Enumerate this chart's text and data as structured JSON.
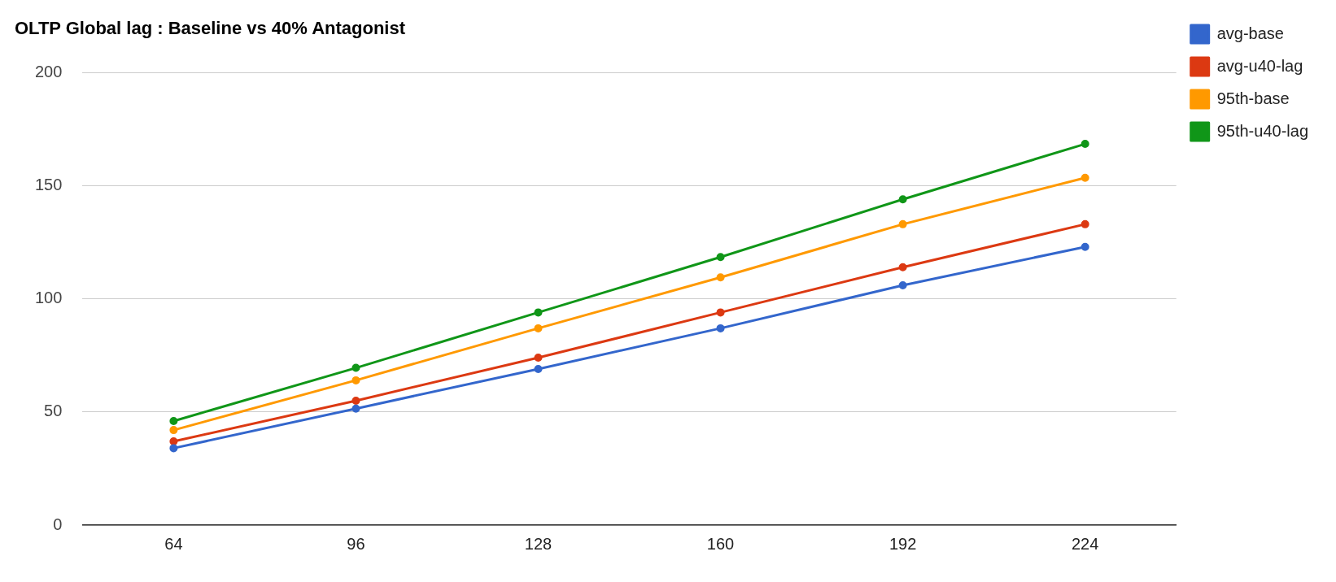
{
  "chart_data": {
    "type": "line",
    "title": "OLTP Global lag : Baseline vs 40% Antagonist",
    "categories": [
      "64",
      "96",
      "128",
      "160",
      "192",
      "224"
    ],
    "series": [
      {
        "name": "avg-base",
        "color": "#3366cc",
        "values": [
          34,
          51.5,
          69,
          87,
          106,
          123
        ]
      },
      {
        "name": "avg-u40-lag",
        "color": "#dc3912",
        "values": [
          37,
          55,
          74,
          94,
          114,
          133
        ]
      },
      {
        "name": "95th-base",
        "color": "#ff9900",
        "values": [
          42,
          64,
          87,
          109.5,
          133,
          153.5
        ]
      },
      {
        "name": "95th-u40-lag",
        "color": "#109618",
        "values": [
          46,
          69.5,
          94,
          118.5,
          144,
          168.5
        ]
      }
    ],
    "ylim": [
      0,
      200
    ],
    "yticks": [
      0,
      50,
      100,
      150,
      200
    ],
    "grid": "y",
    "legend": "right",
    "marker": "circle",
    "line_style": "solid"
  }
}
